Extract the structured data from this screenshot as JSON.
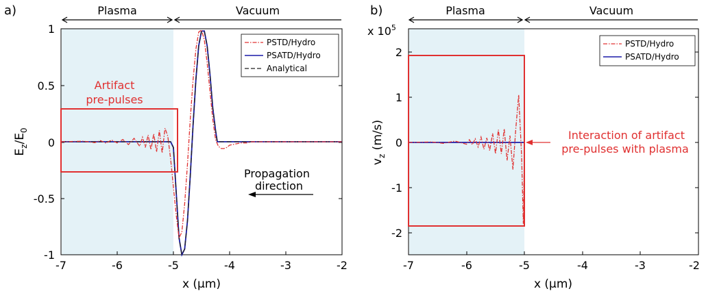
{
  "chart_data": [
    {
      "panel_label": "a)",
      "type": "line",
      "regions": [
        {
          "label": "Plasma",
          "x": [
            -7,
            -5
          ]
        },
        {
          "label": "Vacuum",
          "x": [
            -5,
            -2
          ]
        }
      ],
      "xlabel": "x (μm)",
      "ylabel": "E_z/E_0",
      "xlim": [
        -7,
        -2
      ],
      "ylim": [
        -1,
        1
      ],
      "xticks": [
        -7,
        -6,
        -5,
        -4,
        -3,
        -2
      ],
      "xtick_labels": [
        "-7",
        "-6",
        "-5",
        "-4",
        "-3",
        "-2"
      ],
      "yticks": [
        -1,
        -0.5,
        0,
        0.5,
        1
      ],
      "ytick_labels": [
        "-1",
        "-0.5",
        "0",
        "0.5",
        "1"
      ],
      "legend": {
        "placement": "top-right",
        "entries": [
          "PSTD/Hydro",
          "PSATD/Hydro",
          "Analytical"
        ]
      },
      "series": [
        {
          "name": "PSTD/Hydro",
          "color": "#e03030",
          "style": "dashdot",
          "x": [
            -7,
            -6.6,
            -6.4,
            -6.3,
            -6.2,
            -6.1,
            -6,
            -5.9,
            -5.8,
            -5.7,
            -5.6,
            -5.55,
            -5.5,
            -5.45,
            -5.4,
            -5.35,
            -5.3,
            -5.25,
            -5.2,
            -5.15,
            -5.1,
            -5.05,
            -5,
            -4.95,
            -4.9,
            -4.85,
            -4.8,
            -4.75,
            -4.7,
            -4.65,
            -4.6,
            -4.55,
            -4.5,
            -4.45,
            -4.4,
            -4.35,
            -4.3,
            -4.25,
            -4.2,
            -4.15,
            -4.1,
            -4.05,
            -4,
            -3.9,
            -3.8,
            -3.7,
            -3.6,
            -3.4,
            -3,
            -2.5,
            -2
          ],
          "y": [
            0,
            0.005,
            -0.008,
            0.01,
            -0.012,
            0.015,
            -0.01,
            0.02,
            -0.025,
            0.03,
            -0.04,
            0.04,
            -0.05,
            0.06,
            -0.07,
            0.07,
            -0.09,
            0.1,
            -0.1,
            0.12,
            0.05,
            -0.15,
            -0.4,
            -0.65,
            -0.85,
            -0.8,
            -0.55,
            -0.2,
            0.2,
            0.55,
            0.82,
            0.97,
            0.99,
            0.9,
            0.7,
            0.45,
            0.2,
            0.02,
            -0.04,
            -0.06,
            -0.06,
            -0.05,
            -0.03,
            -0.02,
            -0.01,
            -0.01,
            0,
            0,
            0,
            0,
            0
          ]
        },
        {
          "name": "PSATD/Hydro",
          "color": "#1a1aa8",
          "style": "solid",
          "x": [
            -7,
            -6,
            -5.2,
            -5.05,
            -5,
            -4.95,
            -4.9,
            -4.85,
            -4.8,
            -4.75,
            -4.7,
            -4.65,
            -4.6,
            -4.55,
            -4.5,
            -4.45,
            -4.4,
            -4.35,
            -4.3,
            -4.25,
            -4.22,
            -4.2,
            -4.15,
            -4,
            -3,
            -2
          ],
          "y": [
            0,
            0,
            0,
            0,
            -0.05,
            -0.45,
            -0.85,
            -1,
            -0.95,
            -0.7,
            -0.3,
            0.15,
            0.55,
            0.85,
            0.98,
            0.98,
            0.85,
            0.6,
            0.3,
            0.1,
            0,
            0,
            0,
            0,
            0,
            0
          ]
        },
        {
          "name": "Analytical",
          "color": "#222222",
          "style": "dashed",
          "x": [
            -7,
            -6,
            -5.2,
            -5.05,
            -5,
            -4.95,
            -4.9,
            -4.85,
            -4.8,
            -4.75,
            -4.7,
            -4.65,
            -4.6,
            -4.55,
            -4.5,
            -4.45,
            -4.4,
            -4.35,
            -4.3,
            -4.25,
            -4.22,
            -4.2,
            -4.15,
            -4,
            -3,
            -2
          ],
          "y": [
            0,
            0,
            0,
            0,
            -0.05,
            -0.45,
            -0.85,
            -1,
            -0.95,
            -0.7,
            -0.3,
            0.15,
            0.55,
            0.85,
            0.98,
            0.98,
            0.85,
            0.6,
            0.3,
            0.1,
            0,
            0,
            0,
            0,
            0,
            0
          ]
        }
      ],
      "annotations": [
        {
          "text_lines": [
            "Artifact",
            "pre-pulses"
          ],
          "color": "#e03030",
          "box_x": [
            -7,
            -4.94
          ],
          "box_y": [
            -0.26,
            0.3
          ]
        },
        {
          "text_lines": [
            "Propagation",
            "direction"
          ],
          "color": "#000000",
          "arrow": "left"
        }
      ]
    },
    {
      "panel_label": "b)",
      "type": "line",
      "regions": [
        {
          "label": "Plasma",
          "x": [
            -7,
            -5
          ]
        },
        {
          "label": "Vacuum",
          "x": [
            -5,
            -2
          ]
        }
      ],
      "xlabel": "x (μm)",
      "ylabel": "v_z (m/s)",
      "exponent_label": "x 10",
      "exponent_power": "5",
      "xlim": [
        -7,
        -2
      ],
      "ylim": [
        -2.5,
        2.5
      ],
      "xticks": [
        -7,
        -6,
        -5,
        -4,
        -3,
        -2
      ],
      "xtick_labels": [
        "-7",
        "-6",
        "-5",
        "-4",
        "-3",
        "-2"
      ],
      "yticks": [
        -2,
        -1,
        0,
        1,
        2
      ],
      "ytick_labels": [
        "-2",
        "-1",
        "0",
        "1",
        "2"
      ],
      "legend": {
        "placement": "top-right",
        "entries": [
          "PSTD/Hydro",
          "PSATD/Hydro"
        ]
      },
      "series": [
        {
          "name": "PSTD/Hydro",
          "color": "#e03030",
          "style": "dashdot",
          "x": [
            -7,
            -6.6,
            -6.4,
            -6.2,
            -6,
            -5.95,
            -5.9,
            -5.85,
            -5.8,
            -5.75,
            -5.7,
            -5.65,
            -5.6,
            -5.55,
            -5.5,
            -5.45,
            -5.4,
            -5.35,
            -5.3,
            -5.25,
            -5.2,
            -5.15,
            -5.1,
            -5.05,
            -5.02,
            -5
          ],
          "y": [
            0,
            0.01,
            -0.02,
            0.03,
            -0.04,
            0.06,
            -0.05,
            0.08,
            -0.1,
            0.12,
            -0.15,
            0.1,
            -0.18,
            0.2,
            -0.25,
            0.28,
            -0.25,
            0.3,
            -0.4,
            0.15,
            -0.6,
            0.3,
            1.05,
            -0.3,
            -1.8,
            0
          ]
        },
        {
          "name": "PSATD/Hydro",
          "color": "#1a1aa8",
          "style": "solid",
          "x": [
            -7,
            -5
          ],
          "y": [
            0,
            0
          ]
        }
      ],
      "annotations": [
        {
          "text_lines": [
            "Interaction of artifact",
            "pre-pulses with plasma"
          ],
          "color": "#e03030",
          "box_x": [
            -7,
            -5
          ],
          "box_y": [
            -1.85,
            1.92
          ],
          "arrow": "left"
        }
      ]
    }
  ],
  "colors": {
    "plasma_fill": "#e4f2f7",
    "box": "#e03030",
    "axis": "#000000"
  }
}
